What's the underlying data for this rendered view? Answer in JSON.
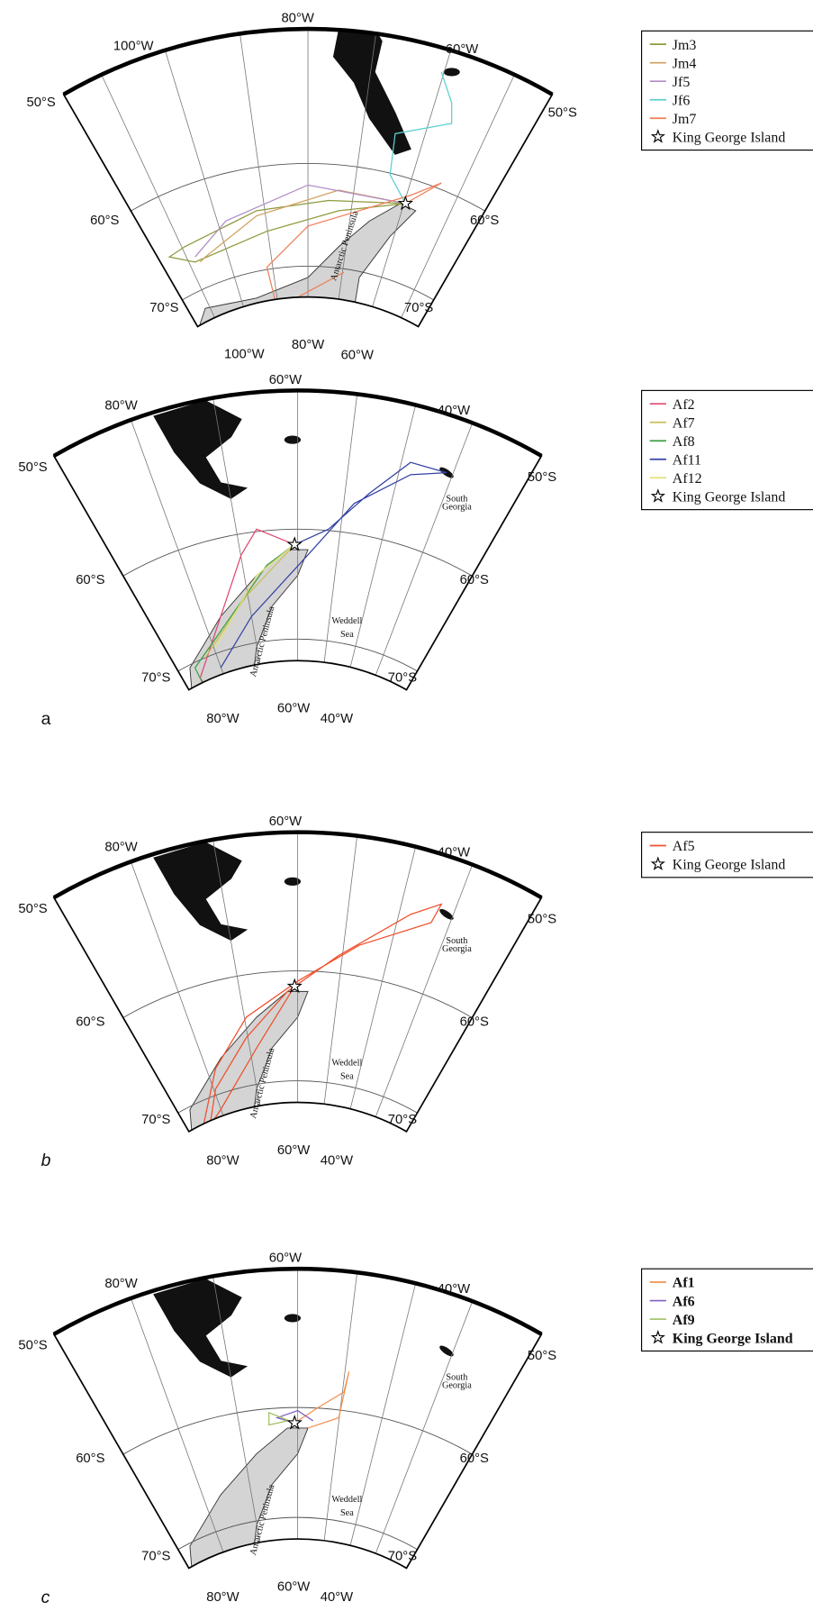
{
  "panels": [
    {
      "top_labels": [
        "100°W",
        "80°W",
        "60°W"
      ],
      "left_labels": [
        "50°S",
        "60°S",
        "70°S"
      ],
      "right_labels": [
        "50°S",
        "60°S",
        "70°S"
      ],
      "bottom_labels": [
        "100°W",
        "80°W",
        "60°W"
      ],
      "places": [
        {
          "lines": [
            "Antarctic Peninsula"
          ]
        }
      ],
      "legend": [
        {
          "name": "Jm3",
          "color": "#8f9a3c"
        },
        {
          "name": "Jm4",
          "color": "#d0a060"
        },
        {
          "name": "Jf5",
          "color": "#b08cc4"
        },
        {
          "name": "Jf6",
          "color": "#5ccfd0"
        },
        {
          "name": "Jm7",
          "color": "#ee7f5a"
        }
      ],
      "star_label": "King George Island"
    },
    {
      "letter": "a",
      "top_labels": [
        "80°W",
        "60°W",
        "40°W"
      ],
      "left_labels": [
        "50°S",
        "60°S",
        "70°S"
      ],
      "right_labels": [
        "50°S",
        "60°S",
        "70°S"
      ],
      "bottom_labels": [
        "80°W",
        "60°W",
        "40°W"
      ],
      "places": [
        {
          "lines": [
            "Antarctic Peninsula"
          ]
        },
        {
          "lines": [
            "Weddell",
            "Sea"
          ]
        },
        {
          "lines": [
            "South",
            "Georgia"
          ]
        }
      ],
      "legend": [
        {
          "name": "Af2",
          "color": "#e04a70"
        },
        {
          "name": "Af7",
          "color": "#c8bf5a"
        },
        {
          "name": "Af8",
          "color": "#40a040"
        },
        {
          "name": "Af11",
          "color": "#3442a4"
        },
        {
          "name": "Af12",
          "color": "#e6e07a"
        }
      ],
      "star_label": "King George Island"
    },
    {
      "letter": "b",
      "top_labels": [
        "80°W",
        "60°W",
        "40°W"
      ],
      "left_labels": [
        "50°S",
        "60°S",
        "70°S"
      ],
      "right_labels": [
        "50°S",
        "60°S",
        "70°S"
      ],
      "bottom_labels": [
        "80°W",
        "60°W",
        "40°W"
      ],
      "places": [
        {
          "lines": [
            "Antarctic Peninsula"
          ]
        },
        {
          "lines": [
            "Weddell",
            "Sea"
          ]
        },
        {
          "lines": [
            "South",
            "Georgia"
          ]
        }
      ],
      "legend": [
        {
          "name": "Af5",
          "color": "#f0502e"
        }
      ],
      "star_label": "King George Island"
    },
    {
      "letter": "c",
      "top_labels": [
        "80°W",
        "60°W",
        "40°W"
      ],
      "left_labels": [
        "50°S",
        "60°S",
        "70°S"
      ],
      "right_labels": [
        "50°S",
        "60°S",
        "70°S"
      ],
      "bottom_labels": [
        "80°W",
        "60°W",
        "40°W"
      ],
      "places": [
        {
          "lines": [
            "Antarctic Peninsula"
          ]
        },
        {
          "lines": [
            "Weddell",
            "Sea"
          ]
        },
        {
          "lines": [
            "South",
            "Georgia"
          ]
        }
      ],
      "legend": [
        {
          "name": "Af1",
          "color": "#f29050"
        },
        {
          "name": "Af6",
          "color": "#8060c0"
        },
        {
          "name": "Af9",
          "color": "#a0c060"
        }
      ],
      "star_label": "King George Island"
    }
  ]
}
